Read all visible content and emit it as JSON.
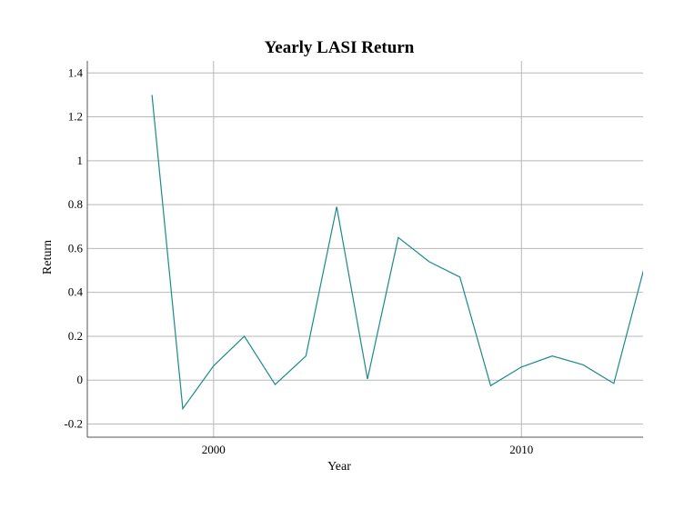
{
  "chart_data": {
    "type": "line",
    "title": "Yearly LASI Return",
    "xlabel": "Year",
    "ylabel": "Return",
    "x": [
      1998,
      1999,
      2000,
      2001,
      2002,
      2003,
      2004,
      2005,
      2006,
      2007,
      2008,
      2009,
      2010,
      2011,
      2012,
      2013,
      2014
    ],
    "series": [
      {
        "values": [
          1.3,
          -0.13,
          0.065,
          0.2,
          -0.02,
          0.11,
          0.79,
          0.005,
          0.65,
          0.54,
          0.47,
          -0.025,
          0.06,
          0.11,
          0.07,
          -0.015,
          0.52
        ],
        "color": "#1a8a8a"
      }
    ],
    "xlim": [
      1995.9,
      2013.95
    ],
    "ylim": [
      -0.26,
      1.455
    ],
    "x_ticks": [
      2000,
      2010
    ],
    "x_tick_labels": [
      "2000",
      "2010"
    ],
    "y_ticks": [
      -0.2,
      0,
      0.2,
      0.4,
      0.6,
      0.8,
      1,
      1.2,
      1.4
    ],
    "y_tick_labels": [
      "-0.2",
      "0",
      "0.2",
      "0.4",
      "0.6",
      "0.8",
      "1",
      "1.2",
      "1.4"
    ],
    "grid": true,
    "legend": "none"
  }
}
